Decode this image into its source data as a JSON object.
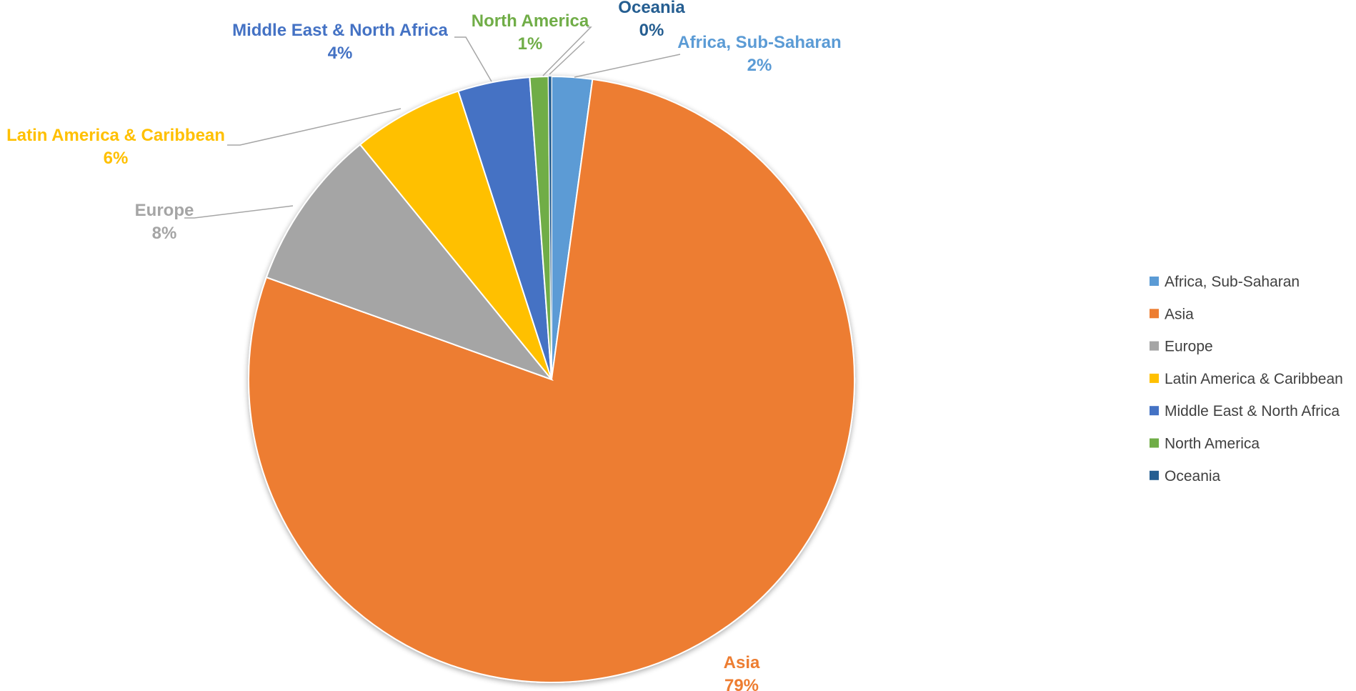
{
  "chart_data": {
    "type": "pie",
    "title": "",
    "legend_position": "right",
    "slices": [
      {
        "label": "Africa, Sub-Saharan",
        "value": 2,
        "display": "2%",
        "color": "#5B9BD5"
      },
      {
        "label": "Asia",
        "value": 79,
        "display": "79%",
        "color": "#ED7D31"
      },
      {
        "label": "Europe",
        "value": 8,
        "display": "8%",
        "color": "#A5A5A5"
      },
      {
        "label": "Latin America & Caribbean",
        "value": 6,
        "display": "6%",
        "color": "#FFC000"
      },
      {
        "label": "Middle East & North Africa",
        "value": 4,
        "display": "4%",
        "color": "#4472C4"
      },
      {
        "label": "North America",
        "value": 1,
        "display": "1%",
        "color": "#70AD47"
      },
      {
        "label": "Oceania",
        "value": 0,
        "display": "0%",
        "color": "#255E91"
      }
    ]
  }
}
